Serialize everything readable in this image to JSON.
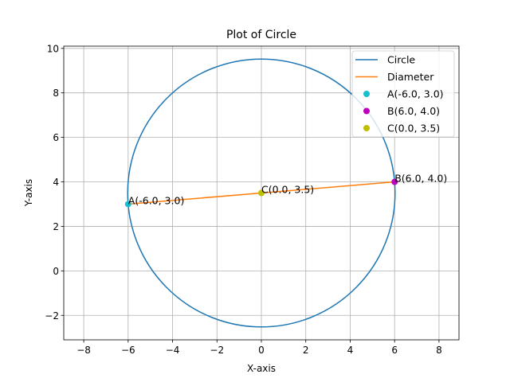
{
  "chart_data": {
    "type": "line",
    "title": "Plot of Circle",
    "xlabel": "X-axis",
    "ylabel": "Y-axis",
    "xlim": [
      -8.9,
      8.9
    ],
    "ylim": [
      -3.1,
      10.1
    ],
    "xticks": [
      -8,
      -6,
      -4,
      -2,
      0,
      2,
      4,
      6,
      8
    ],
    "yticks": [
      -2,
      0,
      2,
      4,
      6,
      8,
      10
    ],
    "xtick_labels": [
      "−8",
      "−6",
      "−4",
      "−2",
      "0",
      "2",
      "4",
      "6",
      "8"
    ],
    "ytick_labels": [
      "−2",
      "0",
      "2",
      "4",
      "6",
      "8",
      "10"
    ],
    "grid": true,
    "legend_position": "top-right",
    "series": [
      {
        "name": "Circle",
        "kind": "circle",
        "center": [
          0.0,
          3.5
        ],
        "radius": 6.0208,
        "color": "#1f77b4"
      },
      {
        "name": "Diameter",
        "kind": "line",
        "x": [
          -6.0,
          6.0
        ],
        "y": [
          3.0,
          4.0
        ],
        "color": "#ff7f0e"
      },
      {
        "name": "A(-6.0, 3.0)",
        "kind": "point",
        "x": -6.0,
        "y": 3.0,
        "color": "#17becf"
      },
      {
        "name": "B(6.0, 4.0)",
        "kind": "point",
        "x": 6.0,
        "y": 4.0,
        "color": "#bf00bf"
      },
      {
        "name": "C(0.0, 3.5)",
        "kind": "point",
        "x": 0.0,
        "y": 3.5,
        "color": "#bfbf00"
      }
    ],
    "annotations": [
      {
        "text": "A(-6.0, 3.0)",
        "x": -6.0,
        "y": 3.0
      },
      {
        "text": "B(6.0, 4.0)",
        "x": 6.0,
        "y": 4.0
      },
      {
        "text": "C(0.0, 3.5)",
        "x": 0.0,
        "y": 3.5
      }
    ]
  }
}
